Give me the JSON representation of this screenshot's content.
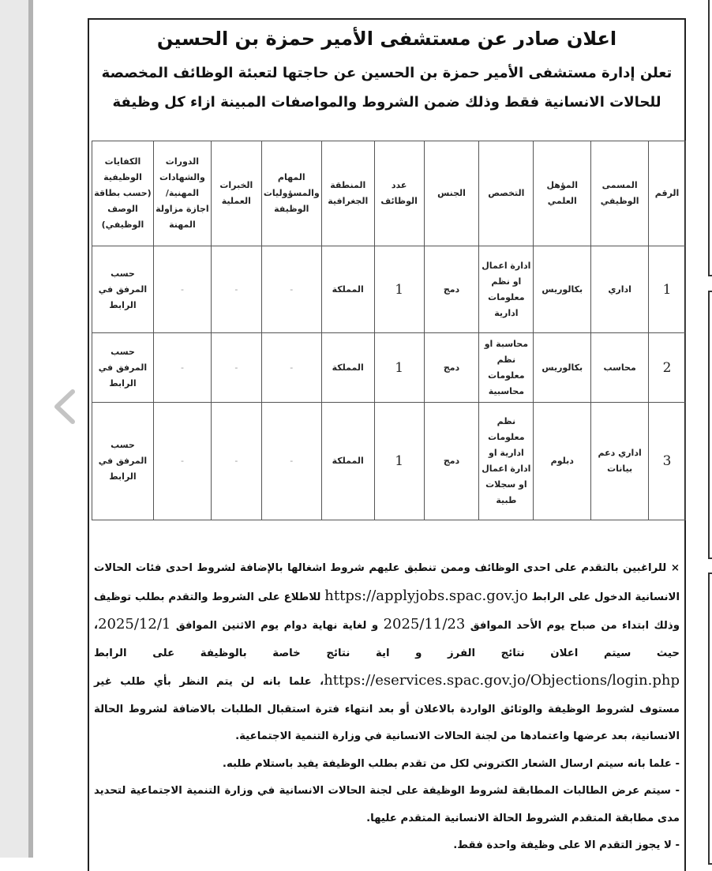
{
  "viewer": {
    "prev_icon": "chevron-left-icon"
  },
  "announcement": {
    "title": "اعلان صادر عن مستشفى الأمير حمزة بن الحسين",
    "subtitle_1": "تعلن إدارة مستشفى الأمير حمزة بن الحسين عن حاجتها لتعبئة الوظائف المخصصة",
    "subtitle_2": "للحالات الانسانية فقط وذلك ضمن الشروط والمواصفات المبينة ازاء كل وظيفة",
    "table": {
      "headers": [
        "الرقم",
        "المسمى الوظيفي",
        "المؤهل العلمي",
        "التخصص",
        "الجنس",
        "عدد الوظائف",
        "المنطقة الجغرافية",
        "المهام والمسؤوليات الوظيفة",
        "الخبرات العملية",
        "الدورات والشهادات المهنية/ اجازة مزاولة المهنة",
        "الكفايات الوظيفية (حسب بطاقة الوصف الوظيفي)"
      ],
      "rows": [
        [
          "1",
          "اداري",
          "بكالوريس",
          "ادارة اعمال او نظم معلومات ادارية",
          "دمج",
          "1",
          "المملكة",
          "-",
          "-",
          "-",
          "حسب المرفق في الرابط"
        ],
        [
          "2",
          "محاسب",
          "بكالوريس",
          "محاسبة او نظم معلومات محاسبية",
          "دمج",
          "1",
          "المملكة",
          "-",
          "-",
          "-",
          "حسب المرفق في الرابط"
        ],
        [
          "3",
          "اداري دعم بيانات",
          "دبلوم",
          "نظم معلومات ادارية او ادارة اعمال او سجلات طبية",
          "دمج",
          "1",
          "المملكة",
          "-",
          "-",
          "-",
          "حسب المرفق في الرابط"
        ]
      ]
    },
    "body": {
      "p1_a": "× للراغبين بالتقدم على احدى الوظائف وممن تنطبق عليهم شروط اشغالها بالإضافة لشروط احدى فئات الحالات الانسانية الدخول على الرابط ",
      "url_1": "https://applyjobs.spac.gov.jo",
      "p1_b": " للاطلاع على الشروط والتقدم بطلب توظيف وذلك ابتداء من صباح يوم الأحد الموافق ",
      "date_start": "2025/11/23",
      "p1_c": " و لغاية نهاية دوام يوم الاثنين الموافق ",
      "date_end": "2025/12/1",
      "p1_d": "، حيث سيتم اعلان نتائج الفرز و اية نتائج خاصة بالوظيفة على الرابط ",
      "url_2": "https://eservices.spac.gov.jo/Objections/login.php",
      "p1_e": "، علما بانه لن يتم النظر بأي طلب غير مستوف لشروط الوظيفة والوثائق الواردة بالاعلان أو بعد انتهاء فترة استقبال الطلبات بالاضافة لشروط الحالة الانسانية، بعد عرضها واعتمادها من لجنة الحالات الانسانية في وزارة التنمية الاجتماعية.",
      "note_1": "- علما بانه سيتم ارسال الشعار الكتروني لكل من تقدم بطلب الوظيفة يفيد باستلام طلبه.",
      "note_2": "- سيتم عرض الطالبات المطابقة لشروط الوظيفة على لجنة الحالات الانسانية في وزارة التنمية الاجتماعية لتحديد مدى مطابقة المتقدم الشروط الحالة الانسانية المتقدم عليها.",
      "note_3": "- لا يجوز التقدم الا على وظيفة واحدة فقط."
    }
  }
}
